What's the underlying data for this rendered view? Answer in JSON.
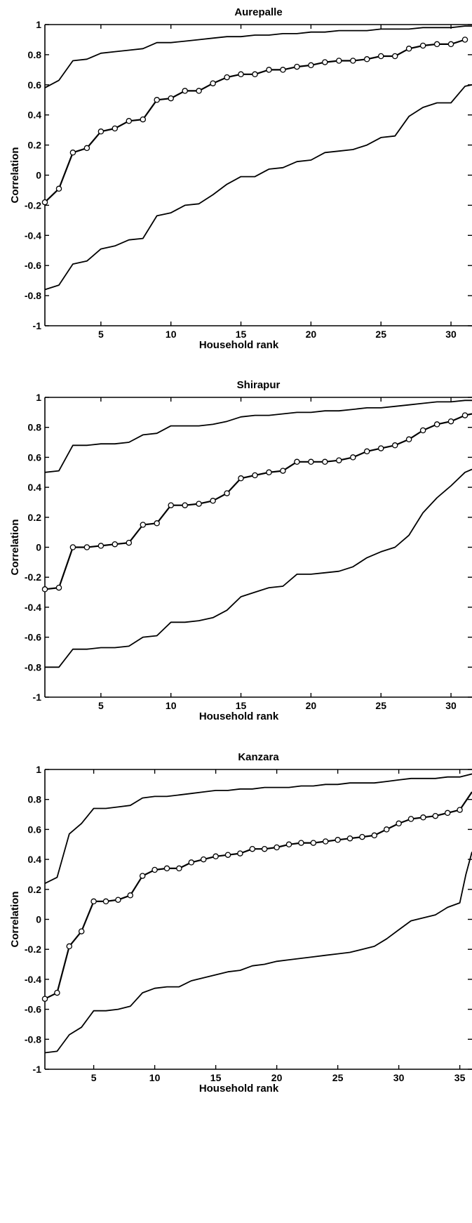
{
  "chart_data": [
    {
      "type": "line",
      "title": "Aurepalle",
      "xlabel": "Household rank",
      "ylabel": "Correlation",
      "xlim": [
        1,
        31.5
      ],
      "ylim": [
        -1,
        1
      ],
      "xticks": [
        5,
        10,
        15,
        20,
        25,
        30
      ],
      "yticks": [
        1,
        0.8,
        0.6,
        0.4,
        0.2,
        0,
        -0.2,
        -0.4,
        -0.6,
        -0.8,
        -1
      ],
      "ytick_labels": [
        "1",
        "0.8",
        "0.6",
        "0.4",
        "0.2",
        "0",
        "-0.2",
        "-0.4",
        "-0.6",
        "-0.8",
        "-1"
      ],
      "series": [
        {
          "role": "upper",
          "markers": false,
          "x": [
            1,
            2,
            3,
            4,
            5,
            6,
            7,
            8,
            9,
            10,
            11,
            12,
            13,
            14,
            15,
            16,
            17,
            18,
            19,
            20,
            21,
            22,
            23,
            24,
            25,
            26,
            27,
            28,
            29,
            30,
            31,
            31.5
          ],
          "values": [
            0.58,
            0.63,
            0.76,
            0.77,
            0.81,
            0.82,
            0.83,
            0.84,
            0.88,
            0.88,
            0.89,
            0.9,
            0.91,
            0.92,
            0.92,
            0.93,
            0.93,
            0.94,
            0.94,
            0.95,
            0.95,
            0.96,
            0.96,
            0.96,
            0.97,
            0.97,
            0.97,
            0.98,
            0.98,
            0.98,
            0.99,
            0.99
          ]
        },
        {
          "role": "estimate",
          "markers": true,
          "x": [
            1,
            2,
            3,
            4,
            5,
            6,
            7,
            8,
            9,
            10,
            11,
            12,
            13,
            14,
            15,
            16,
            17,
            18,
            19,
            20,
            21,
            22,
            23,
            24,
            25,
            26,
            27,
            28,
            29,
            30,
            31
          ],
          "values": [
            -0.18,
            -0.09,
            0.15,
            0.18,
            0.29,
            0.31,
            0.36,
            0.37,
            0.5,
            0.51,
            0.56,
            0.56,
            0.61,
            0.65,
            0.67,
            0.67,
            0.7,
            0.7,
            0.72,
            0.73,
            0.75,
            0.76,
            0.76,
            0.77,
            0.79,
            0.79,
            0.84,
            0.86,
            0.87,
            0.87,
            0.9
          ]
        },
        {
          "role": "lower",
          "markers": false,
          "x": [
            1,
            2,
            3,
            4,
            5,
            6,
            7,
            8,
            9,
            10,
            11,
            12,
            13,
            14,
            15,
            16,
            17,
            18,
            19,
            20,
            21,
            22,
            23,
            24,
            25,
            26,
            27,
            28,
            29,
            30,
            31,
            31.5
          ],
          "values": [
            -0.76,
            -0.73,
            -0.59,
            -0.57,
            -0.49,
            -0.47,
            -0.43,
            -0.42,
            -0.27,
            -0.25,
            -0.2,
            -0.19,
            -0.13,
            -0.06,
            -0.01,
            -0.01,
            0.04,
            0.05,
            0.09,
            0.1,
            0.15,
            0.16,
            0.17,
            0.2,
            0.25,
            0.26,
            0.39,
            0.45,
            0.48,
            0.48,
            0.59,
            0.6
          ]
        }
      ]
    },
    {
      "type": "line",
      "title": "Shirapur",
      "xlabel": "Household rank",
      "ylabel": "Correlation",
      "xlim": [
        1,
        31.5
      ],
      "ylim": [
        -1,
        1
      ],
      "xticks": [
        5,
        10,
        15,
        20,
        25,
        30
      ],
      "yticks": [
        1,
        0.8,
        0.6,
        0.4,
        0.2,
        0,
        -0.2,
        -0.4,
        -0.6,
        -0.8,
        -1
      ],
      "ytick_labels": [
        "1",
        "0.8",
        "0.6",
        "0.4",
        "0.2",
        "0",
        "-0.2",
        "-0.4",
        "-0.6",
        "-0.8",
        "-1"
      ],
      "series": [
        {
          "role": "upper",
          "markers": false,
          "x": [
            1,
            2,
            3,
            4,
            5,
            6,
            7,
            8,
            9,
            10,
            11,
            12,
            13,
            14,
            15,
            16,
            17,
            18,
            19,
            20,
            21,
            22,
            23,
            24,
            25,
            26,
            27,
            28,
            29,
            30,
            31,
            31.5
          ],
          "values": [
            0.5,
            0.51,
            0.68,
            0.68,
            0.69,
            0.69,
            0.7,
            0.75,
            0.76,
            0.81,
            0.81,
            0.81,
            0.82,
            0.84,
            0.87,
            0.88,
            0.88,
            0.89,
            0.9,
            0.9,
            0.91,
            0.91,
            0.92,
            0.93,
            0.93,
            0.94,
            0.95,
            0.96,
            0.97,
            0.97,
            0.98,
            0.98
          ]
        },
        {
          "role": "estimate",
          "markers": true,
          "x": [
            1,
            2,
            3,
            4,
            5,
            6,
            7,
            8,
            9,
            10,
            11,
            12,
            13,
            14,
            15,
            16,
            17,
            18,
            19,
            20,
            21,
            22,
            23,
            24,
            25,
            26,
            27,
            28,
            29,
            30,
            31,
            31.5
          ],
          "values": [
            -0.28,
            -0.27,
            0.0,
            0.0,
            0.01,
            0.02,
            0.03,
            0.15,
            0.16,
            0.28,
            0.28,
            0.29,
            0.31,
            0.36,
            0.46,
            0.48,
            0.5,
            0.51,
            0.57,
            0.57,
            0.57,
            0.58,
            0.6,
            0.64,
            0.66,
            0.68,
            0.72,
            0.78,
            0.82,
            0.84,
            0.88,
            0.89
          ]
        },
        {
          "role": "lower",
          "markers": false,
          "x": [
            1,
            2,
            3,
            4,
            5,
            6,
            7,
            8,
            9,
            10,
            11,
            12,
            13,
            14,
            15,
            16,
            17,
            18,
            19,
            20,
            21,
            22,
            23,
            24,
            25,
            26,
            27,
            28,
            29,
            30,
            31,
            31.5
          ],
          "values": [
            -0.8,
            -0.8,
            -0.68,
            -0.68,
            -0.67,
            -0.67,
            -0.66,
            -0.6,
            -0.59,
            -0.5,
            -0.5,
            -0.49,
            -0.47,
            -0.42,
            -0.33,
            -0.3,
            -0.27,
            -0.26,
            -0.18,
            -0.18,
            -0.17,
            -0.16,
            -0.13,
            -0.07,
            -0.03,
            0.0,
            0.08,
            0.23,
            0.33,
            0.41,
            0.5,
            0.52
          ]
        }
      ]
    },
    {
      "type": "line",
      "title": "Kanzara",
      "xlabel": "Household rank",
      "ylabel": "Correlation",
      "xlim": [
        1,
        36
      ],
      "ylim": [
        -1,
        1
      ],
      "xticks": [
        5,
        10,
        15,
        20,
        25,
        30,
        35
      ],
      "yticks": [
        1,
        0.8,
        0.6,
        0.4,
        0.2,
        0,
        -0.2,
        -0.4,
        -0.6,
        -0.8,
        -1
      ],
      "ytick_labels": [
        "1",
        "0.8",
        "0.6",
        "0.4",
        "0.2",
        "0",
        "-0.2",
        "-0.4",
        "-0.6",
        "-0.8",
        "-1"
      ],
      "series": [
        {
          "role": "upper",
          "markers": false,
          "x": [
            1,
            2,
            3,
            4,
            5,
            6,
            7,
            8,
            9,
            10,
            11,
            12,
            13,
            14,
            15,
            16,
            17,
            18,
            19,
            20,
            21,
            22,
            23,
            24,
            25,
            26,
            27,
            28,
            29,
            30,
            31,
            32,
            33,
            34,
            35,
            36
          ],
          "values": [
            0.24,
            0.28,
            0.57,
            0.64,
            0.74,
            0.74,
            0.75,
            0.76,
            0.81,
            0.82,
            0.82,
            0.83,
            0.84,
            0.85,
            0.86,
            0.86,
            0.87,
            0.87,
            0.88,
            0.88,
            0.88,
            0.89,
            0.89,
            0.9,
            0.9,
            0.91,
            0.91,
            0.91,
            0.92,
            0.93,
            0.94,
            0.94,
            0.94,
            0.95,
            0.95,
            0.97
          ]
        },
        {
          "role": "estimate",
          "markers": true,
          "x": [
            1,
            2,
            3,
            4,
            5,
            6,
            7,
            8,
            9,
            10,
            11,
            12,
            13,
            14,
            15,
            16,
            17,
            18,
            19,
            20,
            21,
            22,
            23,
            24,
            25,
            26,
            27,
            28,
            29,
            30,
            31,
            32,
            33,
            34,
            35,
            36
          ],
          "values": [
            -0.53,
            -0.49,
            -0.18,
            -0.08,
            0.12,
            0.12,
            0.13,
            0.16,
            0.29,
            0.33,
            0.34,
            0.34,
            0.38,
            0.4,
            0.42,
            0.43,
            0.44,
            0.47,
            0.47,
            0.48,
            0.5,
            0.51,
            0.51,
            0.52,
            0.53,
            0.54,
            0.55,
            0.56,
            0.6,
            0.64,
            0.67,
            0.68,
            0.69,
            0.71,
            0.73,
            0.85
          ]
        },
        {
          "role": "lower",
          "markers": false,
          "x": [
            1,
            2,
            3,
            4,
            5,
            6,
            7,
            8,
            9,
            10,
            11,
            12,
            13,
            14,
            15,
            16,
            17,
            18,
            19,
            20,
            21,
            22,
            23,
            24,
            25,
            26,
            27,
            28,
            29,
            30,
            31,
            32,
            33,
            34,
            35,
            35.5,
            36
          ],
          "values": [
            -0.89,
            -0.88,
            -0.77,
            -0.72,
            -0.61,
            -0.61,
            -0.6,
            -0.58,
            -0.49,
            -0.46,
            -0.45,
            -0.45,
            -0.41,
            -0.39,
            -0.37,
            -0.35,
            -0.34,
            -0.31,
            -0.3,
            -0.28,
            -0.27,
            -0.26,
            -0.25,
            -0.24,
            -0.23,
            -0.22,
            -0.2,
            -0.18,
            -0.13,
            -0.07,
            -0.01,
            0.01,
            0.03,
            0.08,
            0.11,
            0.3,
            0.45
          ]
        }
      ]
    }
  ]
}
